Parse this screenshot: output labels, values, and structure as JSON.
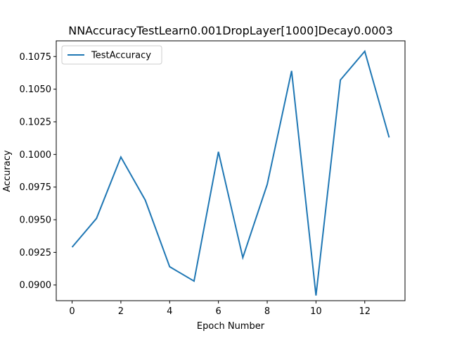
{
  "chart_data": {
    "type": "line",
    "title": "NNAccuracyTestLearn0.001DropLayer[1000]Decay0.0003",
    "xlabel": "Epoch Number",
    "ylabel": "Accuracy",
    "x": [
      0,
      1,
      2,
      3,
      4,
      5,
      6,
      7,
      8,
      9,
      10,
      11,
      12,
      13
    ],
    "xlim": [
      -0.65,
      13.65
    ],
    "ylim": [
      0.0888,
      0.1087
    ],
    "xticks": [
      0,
      2,
      4,
      6,
      8,
      10,
      12
    ],
    "xtick_labels": [
      "0",
      "2",
      "4",
      "6",
      "8",
      "10",
      "12"
    ],
    "yticks": [
      0.09,
      0.0925,
      0.095,
      0.0975,
      0.1,
      0.1025,
      0.105,
      0.1075
    ],
    "ytick_labels": [
      "0.0900",
      "0.0925",
      "0.0950",
      "0.0975",
      "0.1000",
      "0.1025",
      "0.1050",
      "0.1075"
    ],
    "grid": false,
    "legend_position": "upper-left",
    "series": [
      {
        "name": "TestAccuracy",
        "color": "#1f77b4",
        "values": [
          0.0929,
          0.0951,
          0.0998,
          0.0965,
          0.0914,
          0.0903,
          0.1002,
          0.0921,
          0.0977,
          0.1064,
          0.0892,
          0.1057,
          0.1079,
          0.1013
        ]
      }
    ]
  }
}
